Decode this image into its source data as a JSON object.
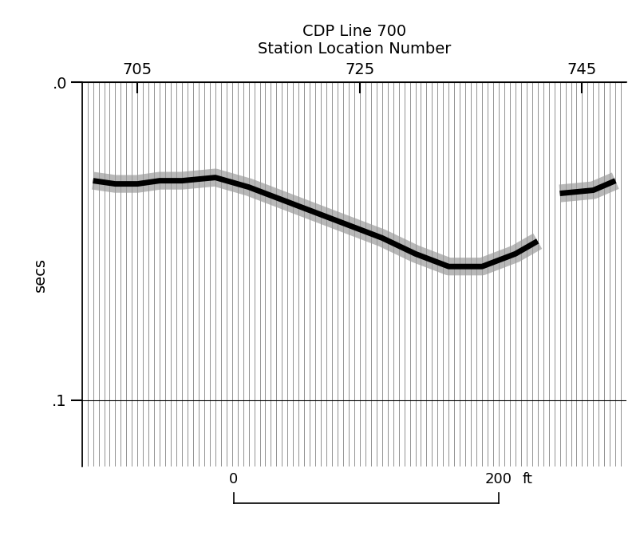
{
  "chart_data": {
    "type": "line",
    "title": "CDP Line 700",
    "x_label": "Station Location Number",
    "y_label": "secs",
    "x": [
      701,
      703,
      705,
      707,
      709,
      712,
      715,
      718,
      721,
      724,
      727,
      730,
      733,
      736,
      739,
      741,
      742,
      743,
      746,
      748
    ],
    "values": [
      0.031,
      0.032,
      0.032,
      0.031,
      0.031,
      0.03,
      0.033,
      0.037,
      0.041,
      0.045,
      0.049,
      0.054,
      0.058,
      0.058,
      0.054,
      0.05,
      null,
      0.035,
      0.034,
      0.031
    ],
    "color": "#000000",
    "xlim": [
      700,
      749
    ],
    "xticks": [
      705,
      725,
      745
    ],
    "ylim": [
      0.121,
      0
    ],
    "yticks": [
      {
        "value": 0,
        "label": ".0"
      },
      {
        "value": 0.1,
        "label": ".1"
      }
    ],
    "grid": true,
    "scale_bar": {
      "start": "0",
      "end": "200",
      "unit": "ft"
    }
  }
}
